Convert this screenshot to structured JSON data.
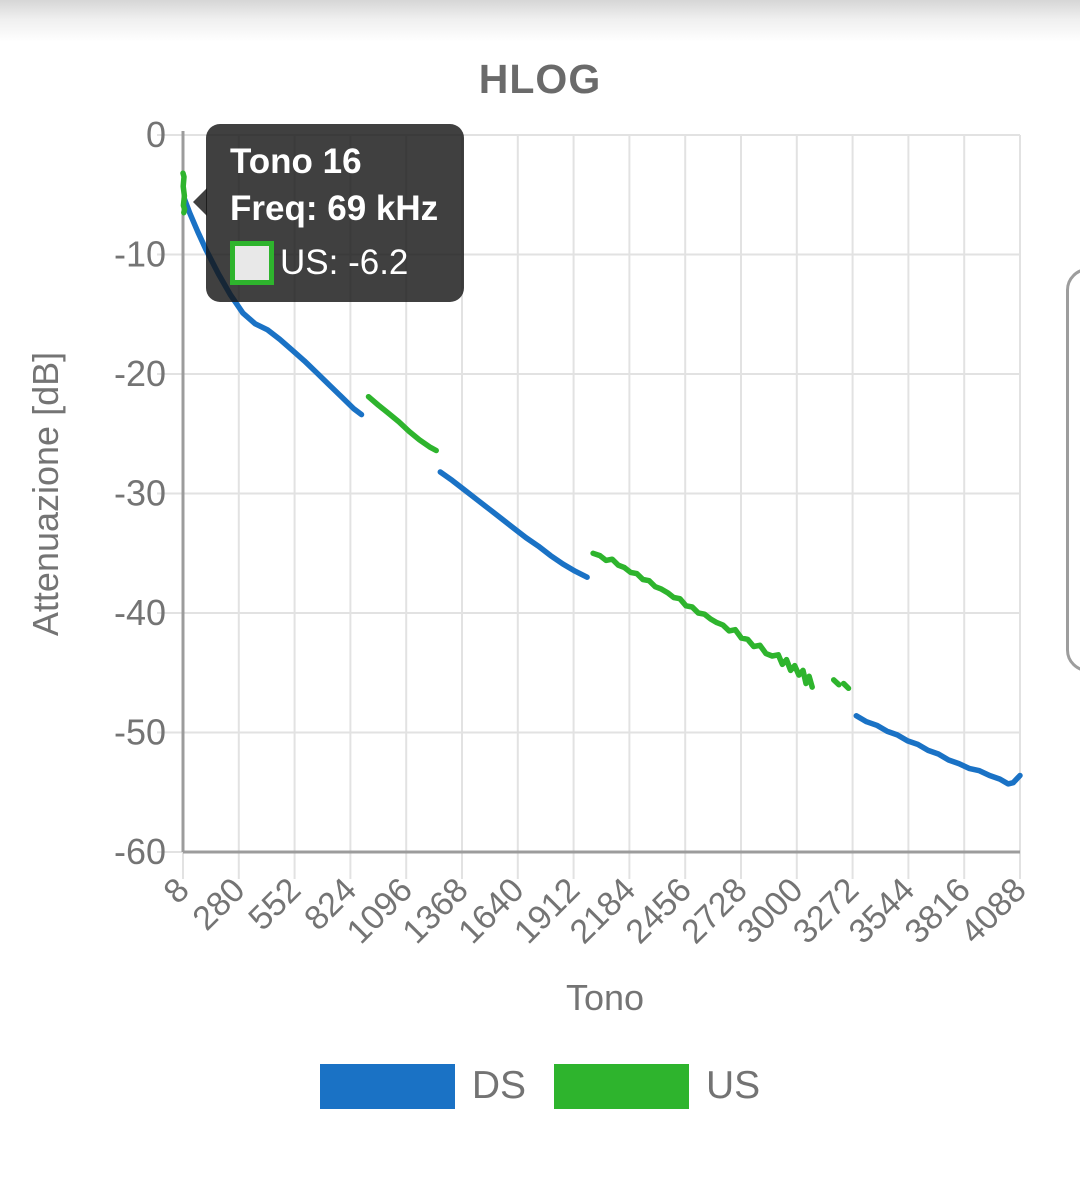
{
  "chart_data": {
    "type": "line",
    "title": "HLOG",
    "xlabel": "Tono",
    "ylabel": "Attenuazione [dB]",
    "xlim": [
      8,
      4088
    ],
    "ylim": [
      -60,
      0
    ],
    "x_ticks": [
      8,
      280,
      552,
      824,
      1096,
      1368,
      1640,
      1912,
      2184,
      2456,
      2728,
      3000,
      3272,
      3544,
      3816,
      4088
    ],
    "y_ticks": [
      0,
      -10,
      -20,
      -30,
      -40,
      -50,
      -60
    ],
    "grid": true,
    "legend_position": "bottom",
    "grid_color": "#e2e2e2",
    "axis_color": "#9c9c9c",
    "tick_label_color": "#747474",
    "series": [
      {
        "name": "DS",
        "color": "#1a72c5",
        "segments": [
          [
            [
              14,
              -5.3
            ],
            [
              40,
              -6.5
            ],
            [
              80,
              -8.1
            ],
            [
              120,
              -9.6
            ],
            [
              180,
              -11.6
            ],
            [
              240,
              -13.4
            ],
            [
              300,
              -14.9
            ],
            [
              360,
              -15.8
            ],
            [
              420,
              -16.3
            ],
            [
              480,
              -17.1
            ],
            [
              540,
              -18.0
            ],
            [
              600,
              -18.9
            ],
            [
              660,
              -19.9
            ],
            [
              720,
              -20.9
            ],
            [
              780,
              -21.9
            ],
            [
              840,
              -22.9
            ],
            [
              878,
              -23.4
            ]
          ],
          [
            [
              1262,
              -28.2
            ],
            [
              1320,
              -28.9
            ],
            [
              1380,
              -29.7
            ],
            [
              1440,
              -30.5
            ],
            [
              1500,
              -31.3
            ],
            [
              1560,
              -32.1
            ],
            [
              1620,
              -32.9
            ],
            [
              1680,
              -33.7
            ],
            [
              1740,
              -34.4
            ],
            [
              1800,
              -35.2
            ],
            [
              1860,
              -35.9
            ],
            [
              1920,
              -36.5
            ],
            [
              1978,
              -37.0
            ]
          ],
          [
            [
              3290,
              -48.6
            ],
            [
              3340,
              -49.1
            ],
            [
              3390,
              -49.4
            ],
            [
              3440,
              -49.9
            ],
            [
              3490,
              -50.2
            ],
            [
              3540,
              -50.7
            ],
            [
              3590,
              -51.0
            ],
            [
              3640,
              -51.5
            ],
            [
              3690,
              -51.8
            ],
            [
              3740,
              -52.3
            ],
            [
              3790,
              -52.6
            ],
            [
              3840,
              -53.0
            ],
            [
              3890,
              -53.2
            ],
            [
              3940,
              -53.6
            ],
            [
              3990,
              -53.9
            ],
            [
              4030,
              -54.3
            ],
            [
              4055,
              -54.2
            ],
            [
              4088,
              -53.6
            ]
          ]
        ]
      },
      {
        "name": "US",
        "color": "#2eb42d",
        "segments": [
          [
            [
              8,
              -3.2
            ],
            [
              13,
              -3.5
            ],
            [
              9,
              -4.3
            ],
            [
              15,
              -5.1
            ],
            [
              10,
              -5.9
            ],
            [
              16,
              -6.2
            ],
            [
              12,
              -6.5
            ]
          ],
          [
            [
              912,
              -21.9
            ],
            [
              960,
              -22.6
            ],
            [
              1010,
              -23.3
            ],
            [
              1060,
              -24.0
            ],
            [
              1110,
              -24.8
            ],
            [
              1160,
              -25.5
            ],
            [
              1210,
              -26.1
            ],
            [
              1242,
              -26.4
            ]
          ],
          [
            [
              2007,
              -35.0
            ],
            [
              2040,
              -35.2
            ],
            [
              2070,
              -35.6
            ],
            [
              2100,
              -35.5
            ],
            [
              2130,
              -36.0
            ],
            [
              2160,
              -36.2
            ],
            [
              2190,
              -36.6
            ],
            [
              2220,
              -36.7
            ],
            [
              2250,
              -37.2
            ],
            [
              2280,
              -37.3
            ],
            [
              2310,
              -37.8
            ],
            [
              2340,
              -38.0
            ],
            [
              2370,
              -38.3
            ],
            [
              2400,
              -38.7
            ],
            [
              2430,
              -38.8
            ],
            [
              2460,
              -39.4
            ],
            [
              2490,
              -39.5
            ],
            [
              2520,
              -40.0
            ],
            [
              2550,
              -40.1
            ],
            [
              2580,
              -40.5
            ],
            [
              2610,
              -40.8
            ],
            [
              2640,
              -41.0
            ],
            [
              2670,
              -41.5
            ],
            [
              2700,
              -41.4
            ],
            [
              2730,
              -42.1
            ],
            [
              2760,
              -42.2
            ],
            [
              2790,
              -42.8
            ],
            [
              2820,
              -42.7
            ],
            [
              2850,
              -43.4
            ],
            [
              2880,
              -43.6
            ],
            [
              2910,
              -43.5
            ],
            [
              2930,
              -44.3
            ],
            [
              2950,
              -43.9
            ],
            [
              2970,
              -44.8
            ],
            [
              2990,
              -44.4
            ],
            [
              3010,
              -45.2
            ],
            [
              3030,
              -44.8
            ],
            [
              3045,
              -45.9
            ],
            [
              3060,
              -45.3
            ],
            [
              3075,
              -46.2
            ]
          ],
          [
            [
              3180,
              -45.6
            ],
            [
              3205,
              -46.0
            ]
          ],
          [
            [
              3228,
              -45.9
            ],
            [
              3252,
              -46.3
            ]
          ]
        ]
      }
    ]
  },
  "tooltip": {
    "title": "Tono 16",
    "freq_line": "Freq: 69 kHz",
    "series_value": "US: -6.2",
    "swatch_border": "#2eb42d",
    "swatch_fill": "#e8e8e8"
  },
  "legend": {
    "items": [
      {
        "label": "DS",
        "color": "#1a72c5"
      },
      {
        "label": "US",
        "color": "#2eb42d"
      }
    ]
  }
}
